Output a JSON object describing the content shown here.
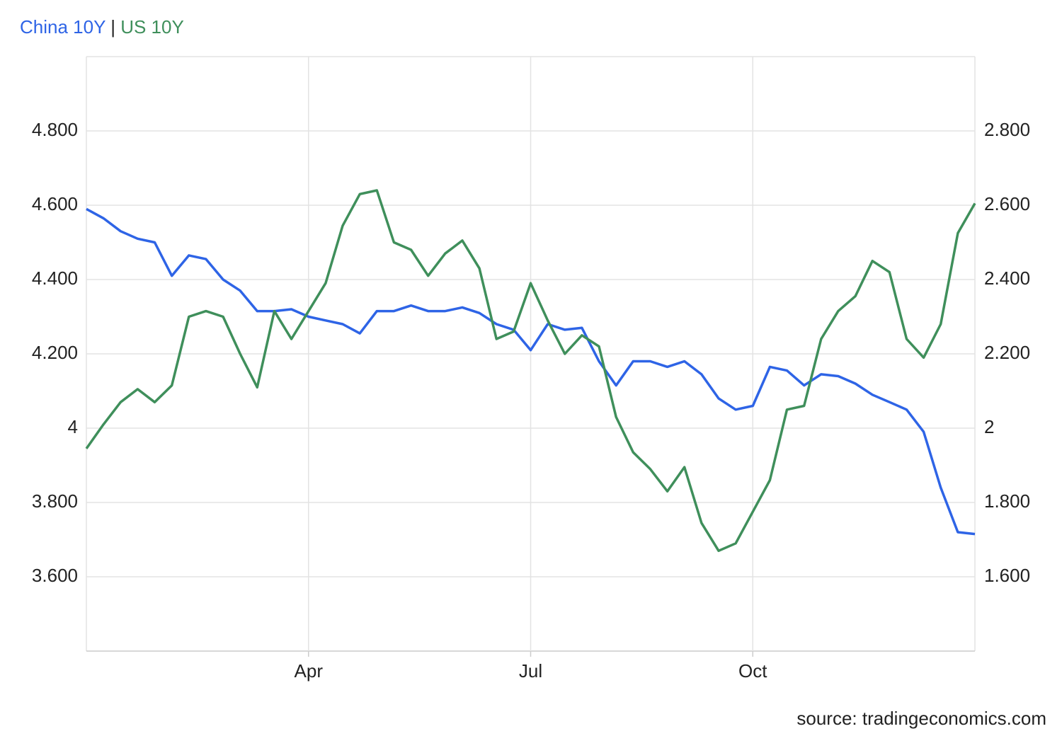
{
  "chart_data": {
    "type": "line",
    "legend_separator": "|",
    "source": "source: tradingeconomics.com",
    "categories": [
      null,
      null,
      null,
      null,
      null,
      null,
      null,
      null,
      null,
      null,
      null,
      null,
      null,
      "Apr",
      null,
      null,
      null,
      null,
      null,
      null,
      null,
      null,
      null,
      null,
      null,
      null,
      "Jul",
      null,
      null,
      null,
      null,
      null,
      null,
      null,
      null,
      null,
      null,
      null,
      null,
      "Oct",
      null,
      null,
      null,
      null,
      null,
      null,
      null,
      null,
      null,
      null,
      null,
      null,
      null
    ],
    "series": [
      {
        "name": "China 10Y",
        "color": "#2e64e6",
        "axis": "y",
        "values": [
          4.59,
          4.565,
          4.53,
          4.51,
          4.5,
          4.41,
          4.465,
          4.455,
          4.4,
          4.37,
          4.315,
          4.315,
          4.32,
          4.3,
          4.29,
          4.28,
          4.255,
          4.315,
          4.315,
          4.33,
          4.315,
          4.315,
          4.325,
          4.31,
          4.28,
          4.265,
          4.21,
          4.28,
          4.265,
          4.27,
          4.18,
          4.115,
          4.18,
          4.18,
          4.165,
          4.18,
          4.145,
          4.08,
          4.05,
          4.06,
          4.165,
          4.155,
          4.115,
          4.145,
          4.14,
          4.12,
          4.09,
          4.07,
          4.05,
          3.99,
          3.84,
          3.72,
          3.715
        ]
      },
      {
        "name": "US 10Y",
        "color": "#3f8f5b",
        "axis": "y2",
        "values": [
          1.945,
          2.01,
          2.07,
          2.105,
          2.07,
          2.115,
          2.3,
          2.315,
          2.3,
          2.2,
          2.11,
          2.315,
          2.24,
          2.315,
          2.39,
          2.545,
          2.63,
          2.64,
          2.5,
          2.48,
          2.41,
          2.47,
          2.505,
          2.43,
          2.24,
          2.26,
          2.39,
          2.29,
          2.2,
          2.25,
          2.22,
          2.03,
          1.935,
          1.89,
          1.83,
          1.895,
          1.745,
          1.67,
          1.69,
          1.775,
          1.86,
          2.05,
          2.06,
          2.24,
          2.315,
          2.355,
          2.45,
          2.42,
          2.24,
          2.19,
          2.28,
          2.525,
          2.605
        ]
      }
    ],
    "ylim": [
      3.4,
      5.0
    ],
    "yticks": [
      {
        "value": 3.6,
        "label": "3.600"
      },
      {
        "value": 3.8,
        "label": "3.800"
      },
      4,
      {
        "value": 4.2,
        "label": "4.200"
      },
      {
        "value": 4.4,
        "label": "4.400"
      },
      {
        "value": 4.6,
        "label": "4.600"
      },
      {
        "value": 4.8,
        "label": "4.800"
      }
    ],
    "y2lim": [
      1.4,
      3.0
    ],
    "y2ticks": [
      {
        "value": 1.6,
        "label": "1.600"
      },
      {
        "value": 1.8,
        "label": "1.800"
      },
      2,
      {
        "value": 2.2,
        "label": "2.200"
      },
      {
        "value": 2.4,
        "label": "2.400"
      },
      {
        "value": 2.6,
        "label": "2.600"
      },
      {
        "value": 2.8,
        "label": "2.800"
      }
    ],
    "grid": true
  }
}
